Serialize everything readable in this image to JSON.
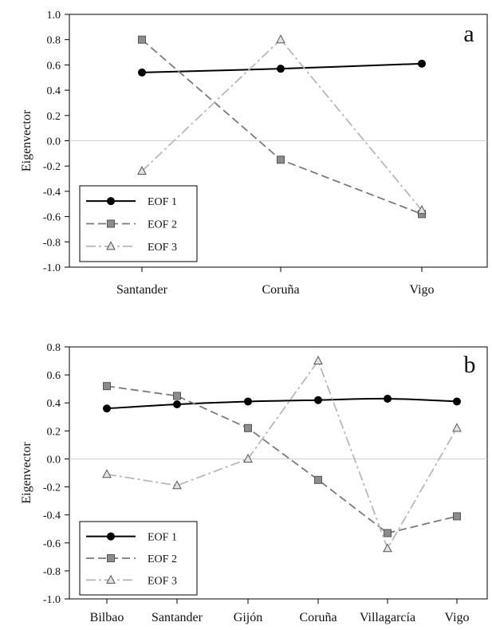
{
  "chart_data": [
    {
      "type": "line",
      "panel_label": "a",
      "ylabel": "Eigenvector",
      "xlabel": "",
      "ylim": [
        -1.0,
        1.0
      ],
      "yticks": [
        "1.0",
        "0.8",
        "0.6",
        "0.4",
        "0.2",
        "0.0",
        "-0.2",
        "-0.4",
        "-0.6",
        "-0.8",
        "-1.0"
      ],
      "categories": [
        "Santander",
        "Coruña",
        "Vigo"
      ],
      "zero_line": true,
      "legend_position": "bottom-left",
      "series": [
        {
          "name": "EOF 1",
          "values": [
            0.54,
            0.57,
            0.61
          ],
          "color": "#000000",
          "marker": "circle",
          "dash": "solid"
        },
        {
          "name": "EOF 2",
          "values": [
            0.8,
            -0.15,
            -0.58
          ],
          "color": "#7a7a7a",
          "marker": "square",
          "dash": "dashed"
        },
        {
          "name": "EOF 3",
          "values": [
            -0.24,
            0.8,
            -0.55
          ],
          "color": "#b8b8b8",
          "marker": "triangle",
          "dash": "dashdot"
        }
      ]
    },
    {
      "type": "line",
      "panel_label": "b",
      "ylabel": "Eigenvector",
      "xlabel": "",
      "ylim": [
        -1.0,
        0.8
      ],
      "yticks": [
        "0.8",
        "0.6",
        "0.4",
        "0.2",
        "0.0",
        "-0.2",
        "-0.4",
        "-0.6",
        "-0.8",
        "-1.0"
      ],
      "categories": [
        "Bilbao",
        "Santander",
        "Gijón",
        "Coruña",
        "Villagarcía",
        "Vigo"
      ],
      "zero_line": true,
      "legend_position": "bottom-left",
      "series": [
        {
          "name": "EOF 1",
          "values": [
            0.36,
            0.39,
            0.41,
            0.42,
            0.43,
            0.41
          ],
          "color": "#000000",
          "marker": "circle",
          "dash": "solid"
        },
        {
          "name": "EOF 2",
          "values": [
            0.52,
            0.45,
            0.22,
            -0.15,
            -0.53,
            -0.41
          ],
          "color": "#7a7a7a",
          "marker": "square",
          "dash": "dashed"
        },
        {
          "name": "EOF 3",
          "values": [
            -0.11,
            -0.19,
            0.0,
            0.7,
            -0.64,
            0.22
          ],
          "color": "#b8b8b8",
          "marker": "triangle",
          "dash": "dashdot"
        }
      ]
    }
  ]
}
